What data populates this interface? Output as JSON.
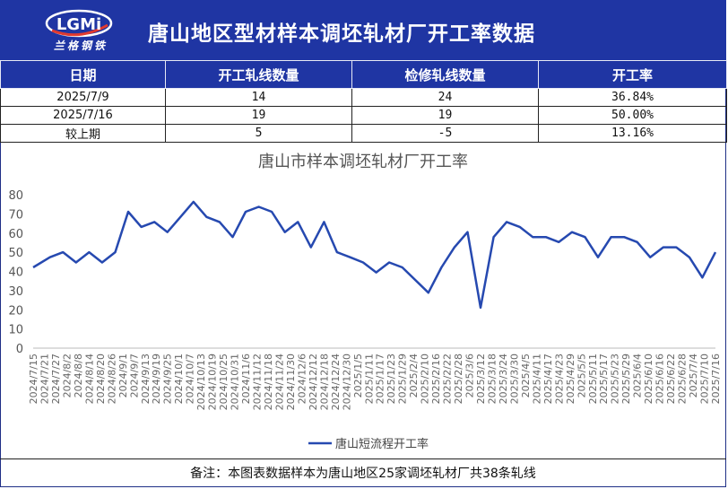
{
  "header": {
    "title": "唐山地区型材样本调坯轧材厂开工率数据",
    "logo_text": "兰格钢铁",
    "logo_mark": "LGMi"
  },
  "table": {
    "columns": [
      "日期",
      "开工轧线数量",
      "检修轧线数量",
      "开工率"
    ],
    "rows": [
      [
        "2025/7/9",
        "14",
        "24",
        "36.84%"
      ],
      [
        "2025/7/16",
        "19",
        "19",
        "50.00%"
      ],
      [
        "较上期",
        "5",
        "-5",
        "13.16%"
      ]
    ]
  },
  "chart_data": {
    "type": "line",
    "title": "唐山市样本调坯轧材厂开工率",
    "ylim": [
      0,
      80
    ],
    "yticks": [
      0,
      10,
      20,
      30,
      40,
      50,
      60,
      70,
      80
    ],
    "grid": false,
    "legend_position": "bottom",
    "x": [
      "2024/7/15",
      "2024/7/21",
      "2024/7/27",
      "2024/8/2",
      "2024/8/8",
      "2024/8/14",
      "2024/8/20",
      "2024/8/26",
      "2024/9/1",
      "2024/9/7",
      "2024/9/13",
      "2024/9/19",
      "2024/9/25",
      "2024/10/1",
      "2024/10/7",
      "2024/10/13",
      "2024/10/19",
      "2024/10/25",
      "2024/10/31",
      "2024/11/6",
      "2024/11/12",
      "2024/11/18",
      "2024/11/24",
      "2024/11/30",
      "2024/12/6",
      "2024/12/12",
      "2024/12/18",
      "2024/12/24",
      "2024/12/30",
      "2025/1/5",
      "2025/1/11",
      "2025/1/17",
      "2025/1/23",
      "2025/1/29",
      "2025/2/4",
      "2025/2/10",
      "2025/2/16",
      "2025/2/22",
      "2025/2/28",
      "2025/3/6",
      "2025/3/12",
      "2025/3/18",
      "2025/3/24",
      "2025/3/30",
      "2025/4/5",
      "2025/4/11",
      "2025/4/17",
      "2025/4/23",
      "2025/4/29",
      "2025/5/5",
      "2025/5/11",
      "2025/5/17",
      "2025/5/23",
      "2025/5/29",
      "2025/6/4",
      "2025/6/10",
      "2025/6/16",
      "2025/6/22",
      "2025/6/28",
      "2025/7/4",
      "2025/7/10",
      "2025/7/16"
    ],
    "series": [
      {
        "name": "唐山短流程开工率",
        "color": "#2649b0",
        "points": [
          [
            "2024/7/15",
            42.1
          ],
          [
            "2024/7/24",
            47.4
          ],
          [
            "2024/7/31",
            50.0
          ],
          [
            "2024/8/7",
            44.7
          ],
          [
            "2024/8/14",
            50.0
          ],
          [
            "2024/8/21",
            44.7
          ],
          [
            "2024/8/28",
            50.0
          ],
          [
            "2024/9/4",
            71.1
          ],
          [
            "2024/9/11",
            63.2
          ],
          [
            "2024/9/18",
            65.8
          ],
          [
            "2024/9/25",
            60.5
          ],
          [
            "2024/10/2",
            68.4
          ],
          [
            "2024/10/9",
            76.3
          ],
          [
            "2024/10/16",
            68.4
          ],
          [
            "2024/10/23",
            65.8
          ],
          [
            "2024/10/30",
            57.9
          ],
          [
            "2024/11/6",
            71.1
          ],
          [
            "2024/11/13",
            73.7
          ],
          [
            "2024/11/20",
            71.1
          ],
          [
            "2024/11/27",
            60.5
          ],
          [
            "2024/12/4",
            65.8
          ],
          [
            "2024/12/11",
            52.6
          ],
          [
            "2024/12/18",
            65.8
          ],
          [
            "2024/12/25",
            50.0
          ],
          [
            "2025/1/1",
            47.4
          ],
          [
            "2025/1/8",
            44.7
          ],
          [
            "2025/1/15",
            39.5
          ],
          [
            "2025/1/22",
            44.7
          ],
          [
            "2025/1/29",
            42.1
          ],
          [
            "2025/2/12",
            28.9
          ],
          [
            "2025/2/19",
            42.1
          ],
          [
            "2025/2/26",
            52.6
          ],
          [
            "2025/3/5",
            60.5
          ],
          [
            "2025/3/12",
            21.1
          ],
          [
            "2025/3/19",
            57.9
          ],
          [
            "2025/3/26",
            65.8
          ],
          [
            "2025/4/2",
            63.2
          ],
          [
            "2025/4/9",
            57.9
          ],
          [
            "2025/4/16",
            57.9
          ],
          [
            "2025/4/23",
            55.3
          ],
          [
            "2025/4/30",
            60.5
          ],
          [
            "2025/5/7",
            57.9
          ],
          [
            "2025/5/14",
            47.4
          ],
          [
            "2025/5/21",
            57.9
          ],
          [
            "2025/5/28",
            57.9
          ],
          [
            "2025/6/4",
            55.3
          ],
          [
            "2025/6/11",
            47.4
          ],
          [
            "2025/6/18",
            52.6
          ],
          [
            "2025/6/25",
            52.6
          ],
          [
            "2025/7/2",
            47.4
          ],
          [
            "2025/7/9",
            36.8
          ],
          [
            "2025/7/16",
            50.0
          ]
        ]
      }
    ]
  },
  "footnote": "备注：本图表数据样本为唐山地区25家调坯轧材厂共38条轧线"
}
